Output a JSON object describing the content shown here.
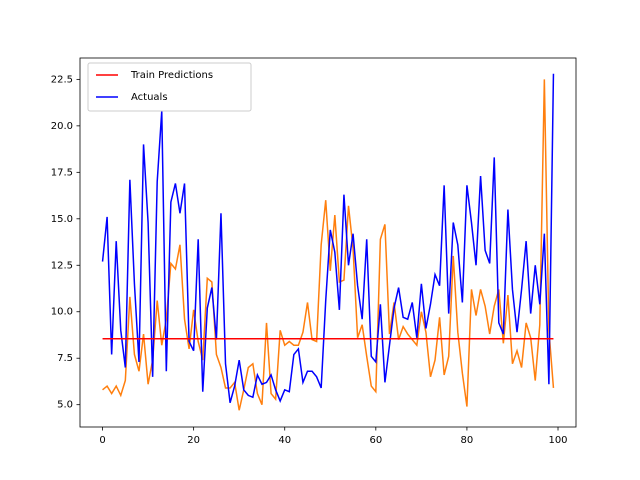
{
  "chart_data": {
    "type": "line",
    "x": [
      0,
      1,
      2,
      3,
      4,
      5,
      6,
      7,
      8,
      9,
      10,
      11,
      12,
      13,
      14,
      15,
      16,
      17,
      18,
      19,
      20,
      21,
      22,
      23,
      24,
      25,
      26,
      27,
      28,
      29,
      30,
      31,
      32,
      33,
      34,
      35,
      36,
      37,
      38,
      39,
      40,
      41,
      42,
      43,
      44,
      45,
      46,
      47,
      48,
      49,
      50,
      51,
      52,
      53,
      54,
      55,
      56,
      57,
      58,
      59,
      60,
      61,
      62,
      63,
      64,
      65,
      66,
      67,
      68,
      69,
      70,
      71,
      72,
      73,
      74,
      75,
      76,
      77,
      78,
      79,
      80,
      81,
      82,
      83,
      84,
      85,
      86,
      87,
      88,
      89,
      90,
      91,
      92,
      93,
      94,
      95,
      96,
      97,
      98,
      99
    ],
    "series": [
      {
        "name": "Train Predictions",
        "color": "#ff0000",
        "values": [
          8.55,
          8.55,
          8.55,
          8.55,
          8.55,
          8.55,
          8.55,
          8.55,
          8.55,
          8.55,
          8.55,
          8.55,
          8.55,
          8.55,
          8.55,
          8.55,
          8.55,
          8.55,
          8.55,
          8.55,
          8.55,
          8.55,
          8.55,
          8.55,
          8.55,
          8.55,
          8.55,
          8.55,
          8.55,
          8.55,
          8.55,
          8.55,
          8.55,
          8.55,
          8.55,
          8.55,
          8.55,
          8.55,
          8.55,
          8.55,
          8.55,
          8.55,
          8.55,
          8.55,
          8.55,
          8.55,
          8.55,
          8.55,
          8.55,
          8.55,
          8.55,
          8.55,
          8.55,
          8.55,
          8.55,
          8.55,
          8.55,
          8.55,
          8.55,
          8.55,
          8.55,
          8.55,
          8.55,
          8.55,
          8.55,
          8.55,
          8.55,
          8.55,
          8.55,
          8.55,
          8.55,
          8.55,
          8.55,
          8.55,
          8.55,
          8.55,
          8.55,
          8.55,
          8.55,
          8.55,
          8.55,
          8.55,
          8.55,
          8.55,
          8.55,
          8.55,
          8.55,
          8.55,
          8.55,
          8.55,
          8.55,
          8.55,
          8.55,
          8.55,
          8.55,
          8.55,
          8.55,
          8.55,
          8.55,
          8.55
        ]
      },
      {
        "name": "Actuals",
        "color": "#0000ff",
        "values": [
          12.7,
          15.1,
          7.7,
          13.8,
          9.0,
          7.0,
          17.1,
          11.5,
          7.3,
          19.0,
          14.8,
          6.5,
          17.0,
          20.8,
          6.8,
          15.9,
          16.9,
          15.3,
          16.9,
          8.4,
          7.9,
          13.9,
          5.7,
          10.2,
          11.3,
          8.5,
          15.3,
          7.2,
          5.1,
          6.0,
          7.4,
          5.8,
          5.5,
          5.4,
          6.6,
          6.1,
          6.2,
          6.6,
          5.8,
          5.2,
          5.8,
          5.7,
          7.7,
          8.0,
          6.2,
          6.8,
          6.8,
          6.5,
          5.9,
          10.6,
          14.4,
          13.2,
          10.1,
          16.3,
          12.5,
          14.2,
          11.4,
          9.6,
          13.9,
          7.6,
          7.3,
          10.4,
          6.2,
          8.2,
          10.2,
          11.3,
          9.7,
          9.6,
          10.5,
          8.6,
          11.5,
          9.1,
          10.4,
          12.0,
          11.4,
          16.8,
          9.9,
          14.8,
          13.6,
          10.5,
          16.8,
          14.8,
          12.5,
          17.3,
          13.3,
          12.6,
          18.3,
          9.4,
          8.8,
          15.5,
          11.2,
          8.9,
          11.2,
          13.8,
          9.9,
          12.5,
          10.4,
          14.2,
          6.1,
          22.8
        ]
      },
      {
        "color": "#ff7f0e",
        "values": [
          5.8,
          6.0,
          5.6,
          6.0,
          5.5,
          6.3,
          10.8,
          7.7,
          6.8,
          8.8,
          6.1,
          7.4,
          10.6,
          8.2,
          9.6,
          12.6,
          12.3,
          13.6,
          9.6,
          8.0,
          10.1,
          8.4,
          7.4,
          11.8,
          11.6,
          7.7,
          7.0,
          5.9,
          5.9,
          6.2,
          4.7,
          5.8,
          7.0,
          7.2,
          5.6,
          5.0,
          9.4,
          5.6,
          5.3,
          9.0,
          8.2,
          8.4,
          8.2,
          8.2,
          8.9,
          10.5,
          8.5,
          8.4,
          13.6,
          16.0,
          12.2,
          15.2,
          11.6,
          11.7,
          15.7,
          13.4,
          8.6,
          9.3,
          7.6,
          6.0,
          5.7,
          13.9,
          14.7,
          8.8,
          10.5,
          8.5,
          9.2,
          8.8,
          8.5,
          8.2,
          10.0,
          8.9,
          6.5,
          7.4,
          9.7,
          6.6,
          7.6,
          13.0,
          8.9,
          6.7,
          4.9,
          11.2,
          9.8,
          11.2,
          10.3,
          8.8,
          10.3,
          11.2,
          8.3,
          10.9,
          7.2,
          7.9,
          7.0,
          9.4,
          8.6,
          6.3,
          9.3,
          22.5,
          9.0,
          5.9
        ]
      }
    ],
    "xlim": [
      -4.95,
      103.95
    ],
    "ylim": [
      3.8,
      23.65
    ],
    "xticks": [
      0,
      20,
      40,
      60,
      80,
      100
    ],
    "yticks": [
      {
        "value": 5,
        "label": "5.0"
      },
      7.5,
      {
        "value": 10,
        "label": "10.0"
      },
      12.5,
      {
        "value": 15,
        "label": "15.0"
      },
      17.5,
      {
        "value": 20,
        "label": "20.0"
      },
      22.5
    ],
    "legend": "upper left"
  }
}
